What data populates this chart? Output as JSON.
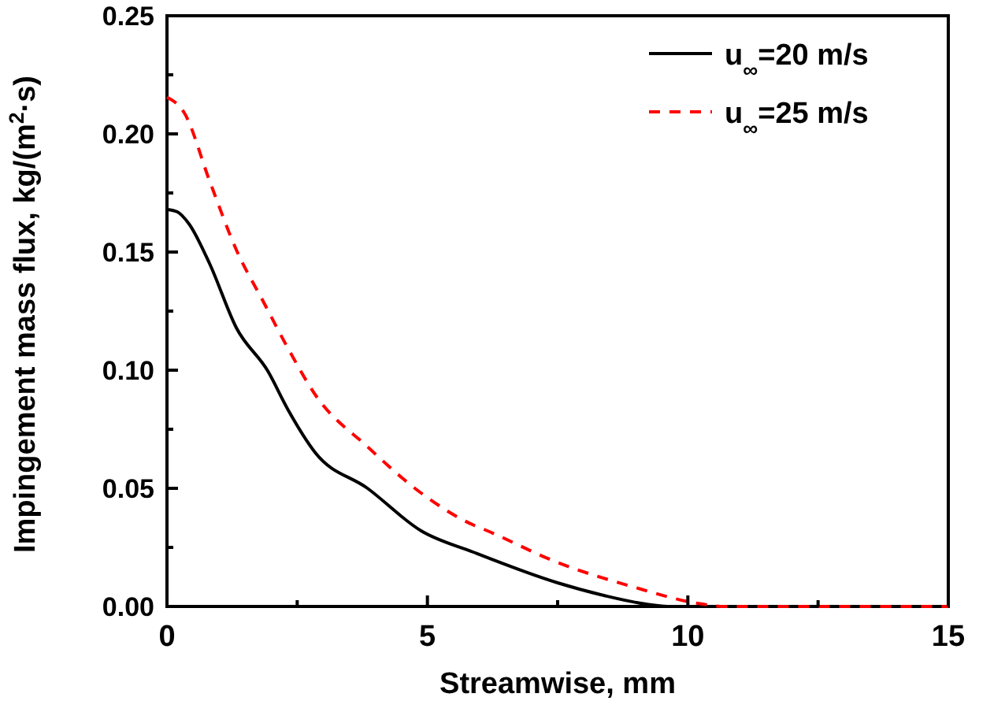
{
  "chart_data": {
    "type": "line",
    "xlabel": "Streamwise, mm",
    "ylabel": "Impingement mass flux, kg/(m$^{2}$·s)",
    "xlim": [
      0,
      15
    ],
    "ylim": [
      0,
      0.25
    ],
    "xticks": [
      0,
      {
        "value": 2.5,
        "label": null
      },
      5,
      {
        "value": 7.5,
        "label": null
      },
      10,
      {
        "value": 12.5,
        "label": null
      },
      15
    ],
    "yticks": [
      {
        "value": 0,
        "label": "0.00"
      },
      {
        "value": 0.025,
        "label": null
      },
      {
        "value": 0.05,
        "label": "0.05"
      },
      {
        "value": 0.075,
        "label": null
      },
      {
        "value": 0.1,
        "label": "0.10"
      },
      {
        "value": 0.125,
        "label": null
      },
      {
        "value": 0.15,
        "label": "0.15"
      },
      {
        "value": 0.175,
        "label": null
      },
      {
        "value": 0.2,
        "label": "0.20"
      },
      {
        "value": 0.225,
        "label": null
      },
      {
        "value": 0.25,
        "label": "0.25"
      }
    ],
    "legend": "top right",
    "grid": false,
    "marker": "none",
    "series": [
      {
        "name": "u$_{∞}$=20 m/s",
        "color": "#000000",
        "line_style": "solid",
        "x": [
          0,
          0.2,
          0.42,
          0.82,
          1.33,
          1.94,
          2.33,
          2.85,
          3.85,
          4.88,
          5.88,
          7.5,
          8.4,
          9.2,
          9.7,
          10.5,
          12,
          15
        ],
        "values": [
          0.168,
          0.167,
          0.162,
          0.145,
          0.118,
          0.0995,
          0.083,
          0.065,
          0.05,
          0.032,
          0.023,
          0.01,
          0.0046,
          0.001,
          0,
          0,
          0,
          0
        ]
      },
      {
        "name": "u$_{∞}$=25 m/s",
        "color": "#ff0000",
        "line_style": "dashed",
        "x": [
          0,
          0.33,
          0.82,
          1.33,
          1.85,
          2.33,
          2.85,
          3.85,
          4.88,
          5.88,
          6.1,
          7.5,
          8.9,
          10.2,
          10.7,
          12,
          15
        ],
        "values": [
          0.2155,
          0.209,
          0.18,
          0.151,
          0.129,
          0.109,
          0.0895,
          0.0676,
          0.048,
          0.0345,
          0.0325,
          0.0186,
          0.0086,
          0.0013,
          0,
          0,
          0
        ]
      }
    ]
  }
}
